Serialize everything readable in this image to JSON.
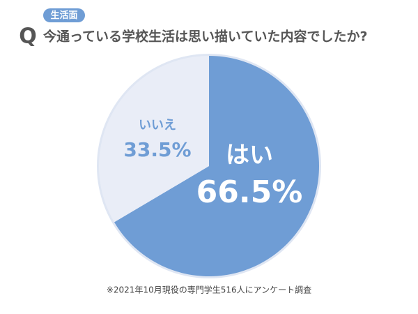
{
  "chart_data": {
    "type": "pie",
    "tag": "生活面",
    "title_prefix": "Q",
    "title": "今通っている学校生活は思い描いていた内容でしたか?",
    "categories": [
      "はい",
      "いいえ"
    ],
    "values": [
      66.5,
      33.5
    ],
    "value_labels": [
      "66.5%",
      "33.5%"
    ],
    "colors": [
      "#6f9dd5",
      "#e9edf7"
    ],
    "note": "※2021年10月現役の専門学生516人にアンケート調査"
  }
}
